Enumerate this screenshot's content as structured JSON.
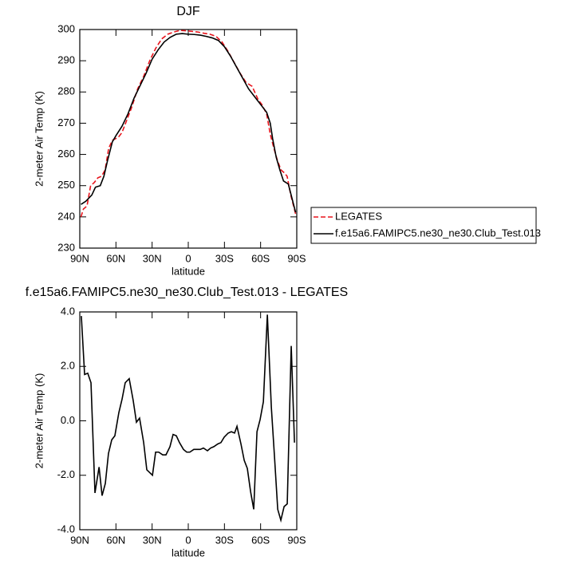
{
  "chart_data": [
    {
      "type": "line",
      "title": "DJF",
      "x_label": "latitude",
      "y_label": "2-meter Air Temp (K)",
      "x": [
        89,
        85,
        80,
        77,
        73,
        70,
        67,
        63,
        60,
        55,
        50,
        45,
        40,
        35,
        30,
        25,
        20,
        15,
        10,
        5,
        0,
        -5,
        -10,
        -15,
        -20,
        -25,
        -30,
        -35,
        -40,
        -45,
        -50,
        -55,
        -60,
        -65,
        -68,
        -70,
        -73,
        -76,
        -79,
        -83,
        -86,
        -89
      ],
      "series": [
        {
          "name": "LEGATES",
          "color": "#e8141c",
          "style": "dashed",
          "x": [
            89,
            87,
            84,
            81,
            78,
            75,
            72,
            69,
            66,
            63,
            58,
            55,
            52,
            47,
            42,
            37,
            32,
            27,
            22,
            17,
            12,
            7,
            2,
            -3,
            -8,
            -13,
            -18,
            -23,
            -28,
            -33,
            -38,
            -43,
            -48,
            -53,
            -58,
            -61,
            -65,
            -68,
            -71,
            -74,
            -77,
            -80,
            -82,
            -85,
            -89
          ],
          "values": [
            240,
            242.5,
            243.5,
            250,
            251,
            252.5,
            253,
            255,
            262,
            264.5,
            265.5,
            267,
            270,
            275,
            281,
            285,
            290,
            294,
            297,
            298.5,
            299.2,
            299.7,
            299.6,
            299.4,
            299.2,
            298.8,
            298.5,
            297.8,
            296,
            293,
            289.5,
            286,
            283,
            281.8,
            277.5,
            276,
            273,
            266.5,
            262,
            258,
            255,
            254,
            253,
            247,
            241
          ]
        },
        {
          "name": "f.e15a6.FAMIPC5.ne30_ne30.Club_Test.013",
          "color": "#000000",
          "style": "solid",
          "x": [
            89,
            85,
            80,
            77,
            73,
            70,
            67,
            63,
            60,
            55,
            50,
            45,
            40,
            35,
            30,
            25,
            20,
            15,
            10,
            5,
            0,
            -5,
            -10,
            -15,
            -20,
            -25,
            -30,
            -35,
            -40,
            -45,
            -50,
            -55,
            -60,
            -65,
            -68,
            -70,
            -73,
            -76,
            -79,
            -83,
            -86,
            -89
          ],
          "values": [
            244,
            245,
            247,
            249.5,
            250,
            253,
            258,
            264,
            266,
            269,
            273,
            278,
            282,
            286,
            290.5,
            293.5,
            296,
            297.5,
            298.5,
            298.7,
            298.5,
            298.4,
            298.2,
            297.8,
            297.3,
            296.5,
            294.5,
            291.5,
            288,
            284.5,
            281,
            278.5,
            276,
            273.5,
            270,
            265,
            259,
            255,
            251.5,
            250.5,
            246,
            241.5
          ]
        }
      ],
      "xlim": [
        90,
        -90
      ],
      "xticks": [
        {
          "value": 90,
          "label": "90N"
        },
        {
          "value": 60,
          "label": "60N"
        },
        {
          "value": 30,
          "label": "30N"
        },
        0,
        {
          "value": -30,
          "label": "30S"
        },
        {
          "value": -60,
          "label": "60S"
        },
        {
          "value": -90,
          "label": "90S"
        }
      ],
      "ylim": [
        230,
        300
      ],
      "yticks": [
        230,
        240,
        250,
        260,
        270,
        280,
        290,
        300
      ]
    },
    {
      "type": "line",
      "title": "f.e15a6.FAMIPC5.ne30_ne30.Club_Test.013 - LEGATES",
      "x_label": "latitude",
      "y_label": "2-meter Air Temp (K)",
      "color": "#000000",
      "x": [
        88.7,
        86,
        83.4,
        80.7,
        77.4,
        74,
        71.5,
        68.8,
        66.2,
        63.5,
        60.9,
        57.6,
        54.9,
        52.3,
        49,
        45.7,
        43,
        40.4,
        37,
        34.4,
        29.7,
        27.1,
        24.5,
        21.2,
        18.5,
        15.2,
        12.6,
        9.9,
        7.3,
        4,
        1.3,
        -1.3,
        -4.6,
        -7.3,
        -9.9,
        -12.6,
        -15.9,
        -18.5,
        -21.2,
        -24.5,
        -27.1,
        -29.8,
        -33.1,
        -35.7,
        -38.4,
        -40.4,
        -43.7,
        -46.4,
        -49,
        -51.7,
        -54.3,
        -57,
        -59.6,
        -62.3,
        -65.6,
        -68.9,
        -71.5,
        -74.2,
        -76.8,
        -79.5,
        -82.1,
        -85.4,
        -88.1
      ],
      "values": [
        3.85,
        1.7,
        1.75,
        1.4,
        -2.65,
        -1.7,
        -2.75,
        -2.3,
        -1.2,
        -0.7,
        -0.55,
        0.3,
        0.8,
        1.4,
        1.55,
        0.75,
        -0.05,
        0.1,
        -0.8,
        -1.8,
        -2.0,
        -1.15,
        -1.15,
        -1.25,
        -1.25,
        -0.95,
        -0.5,
        -0.55,
        -0.8,
        -1.05,
        -1.15,
        -1.15,
        -1.05,
        -1.05,
        -1.05,
        -1.0,
        -1.1,
        -1.0,
        -0.95,
        -0.85,
        -0.8,
        -0.6,
        -0.45,
        -0.4,
        -0.45,
        -0.2,
        -0.85,
        -1.45,
        -1.75,
        -2.6,
        -3.25,
        -0.4,
        0.05,
        0.7,
        3.9,
        0.5,
        -1.3,
        -3.25,
        -3.65,
        -3.15,
        -3.05,
        2.75,
        -0.8
      ],
      "xlim": [
        90,
        -90
      ],
      "xticks": [
        {
          "value": 90,
          "label": "90N"
        },
        {
          "value": 60,
          "label": "60N"
        },
        {
          "value": 30,
          "label": "30N"
        },
        0,
        {
          "value": -30,
          "label": "30S"
        },
        {
          "value": -60,
          "label": "60S"
        },
        {
          "value": -90,
          "label": "90S"
        }
      ],
      "ylim": [
        -4,
        4
      ],
      "yticks": [
        {
          "value": -4,
          "label": "-4.0"
        },
        {
          "value": -2,
          "label": "-2.0"
        },
        {
          "value": 0,
          "label": "0.0"
        },
        {
          "value": 2,
          "label": "2.0"
        },
        {
          "value": 4,
          "label": "4.0"
        }
      ]
    }
  ]
}
